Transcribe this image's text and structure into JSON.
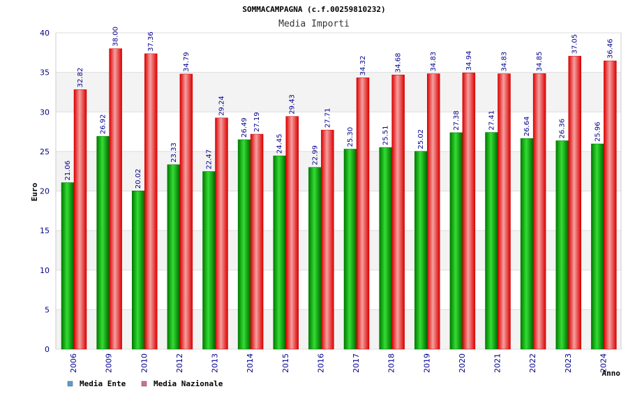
{
  "chart_data": {
    "type": "bar",
    "title": "SOMMACAMPAGNA (c.f.00259810232)",
    "subtitle": "Media Importi",
    "xlabel": "Anno",
    "ylabel": "Euro",
    "ylim": [
      0,
      40
    ],
    "yticks": [
      0,
      5,
      10,
      15,
      20,
      25,
      30,
      35,
      40
    ],
    "categories": [
      "2006",
      "2009",
      "2010",
      "2012",
      "2013",
      "2014",
      "2015",
      "2016",
      "2017",
      "2018",
      "2019",
      "2020",
      "2021",
      "2022",
      "2023",
      "2024"
    ],
    "series": [
      {
        "name": "Media Ente",
        "color": "#00aa00",
        "values": [
          21.06,
          26.92,
          20.02,
          23.33,
          22.47,
          26.49,
          24.45,
          22.99,
          25.3,
          25.51,
          25.02,
          27.38,
          27.41,
          26.64,
          26.36,
          25.96
        ],
        "labels": [
          "21.06",
          "26.92",
          "20.02",
          "23.33",
          "22.47",
          "26.49",
          "24.45",
          "22.99",
          "25.30",
          "25.51",
          "25.02",
          "27.38",
          "27.41",
          "26.64",
          "26.36",
          "25.96"
        ]
      },
      {
        "name": "Media Nazionale",
        "color": "#ee0000",
        "values": [
          32.82,
          38.0,
          37.36,
          34.79,
          29.24,
          27.19,
          29.43,
          27.71,
          34.32,
          34.68,
          34.83,
          34.94,
          34.83,
          34.85,
          37.05,
          36.46
        ],
        "labels": [
          "32.82",
          "38.00",
          "37.36",
          "34.79",
          "29.24",
          "27.19",
          "29.43",
          "27.71",
          "34.32",
          "34.68",
          "34.83",
          "34.94",
          "34.83",
          "34.85",
          "37.05",
          "36.46"
        ]
      }
    ],
    "legend": [
      {
        "label": "Media Ente",
        "color": "#5b9bd5"
      },
      {
        "label": "Media Nazionale",
        "color": "#d36b9e"
      }
    ],
    "legend_position": "bottom-left",
    "grid": true
  }
}
